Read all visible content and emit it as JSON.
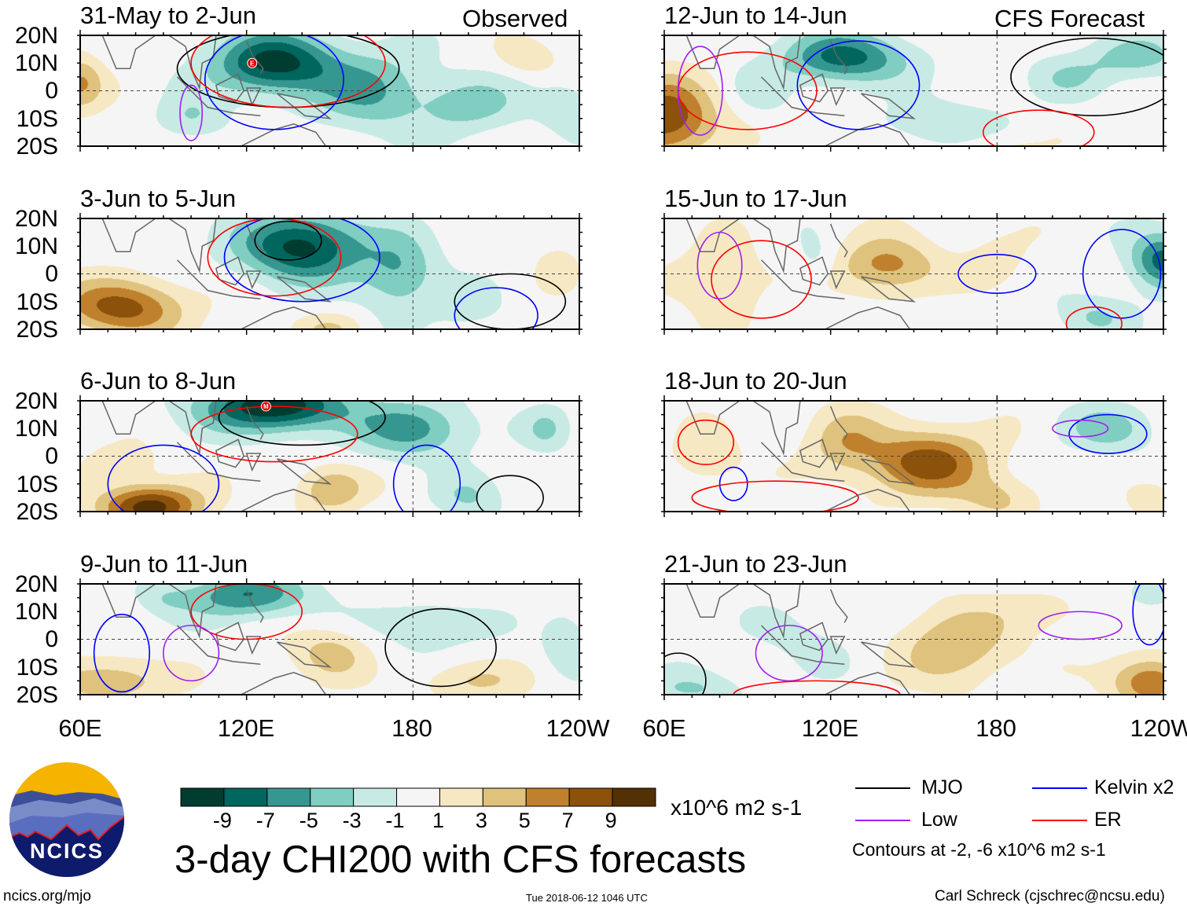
{
  "header": {
    "left_label": "Observed",
    "right_label": "CFS Forecast"
  },
  "lat_labels": [
    "20N",
    "10N",
    "0",
    "10S",
    "20S"
  ],
  "lon_labels": [
    "60E",
    "120E",
    "180",
    "120W"
  ],
  "colorbar": {
    "ticks": [
      "-9",
      "-7",
      "-5",
      "-3",
      "-1",
      "1",
      "3",
      "5",
      "7",
      "9"
    ],
    "colors": [
      "#003c30",
      "#01665e",
      "#35978f",
      "#80cdc1",
      "#c7eae5",
      "#f5f5f5",
      "#f6e8c3",
      "#dfc27d",
      "#bf812d",
      "#8c510a",
      "#543005"
    ],
    "units": "x10^6 m2 s-1"
  },
  "title": "3-day CHI200 with CFS forecasts",
  "legend": {
    "items": [
      {
        "label": "MJO",
        "color": "#000000"
      },
      {
        "label": "Kelvin x2",
        "color": "#0000ff"
      },
      {
        "label": "Low",
        "color": "#a020f0"
      },
      {
        "label": "ER",
        "color": "#ff0000"
      }
    ],
    "note": "Contours at -2, -6 x10^6 m2 s-1"
  },
  "footer": {
    "url": "ncics.org/mjo",
    "timestamp": "Tue 2018-06-12 1046 UTC",
    "credit": "Carl Schreck (cjschrec@ncsu.edu)",
    "logo_text": "NCICS"
  },
  "chart_data": {
    "type": "heatmap",
    "variable": "CHI200 anomaly",
    "xlim": [
      60,
      240
    ],
    "ylim": [
      -20,
      20
    ],
    "levels": [
      -9,
      -7,
      -5,
      -3,
      -1,
      1,
      3,
      5,
      7,
      9
    ],
    "panels": [
      {
        "title": "31-May to 2-Jun",
        "group": "Observed",
        "centers": [
          [
            130,
            10,
            -10,
            22,
            11
          ],
          [
            165,
            0,
            -5,
            20,
            14
          ],
          [
            60,
            3,
            5,
            8,
            10
          ],
          [
            200,
            -5,
            -4,
            18,
            10
          ],
          [
            222,
            12,
            2.5,
            10,
            6
          ],
          [
            100,
            -10,
            -3,
            12,
            8
          ],
          [
            235,
            -5,
            -3,
            10,
            8
          ]
        ],
        "contours": [
          [
            "MJO",
            135,
            8,
            40,
            14
          ],
          [
            "Kelvin",
            130,
            4,
            25,
            18
          ],
          [
            "ER",
            135,
            10,
            35,
            16
          ],
          [
            "Low",
            100,
            -8,
            4,
            10
          ]
        ],
        "storm": [
          122,
          10,
          "E"
        ]
      },
      {
        "title": "3-Jun to 5-Jun",
        "group": "Observed",
        "centers": [
          [
            140,
            10,
            -10,
            22,
            12
          ],
          [
            175,
            0,
            -5,
            14,
            14
          ],
          [
            75,
            -12,
            8,
            22,
            10
          ],
          [
            150,
            -20,
            3,
            12,
            6
          ],
          [
            232,
            4,
            2,
            8,
            8
          ],
          [
            200,
            -12,
            -2,
            12,
            8
          ]
        ],
        "contours": [
          [
            "MJO",
            135,
            12,
            12,
            7
          ],
          [
            "Kelvin",
            140,
            6,
            28,
            16
          ],
          [
            "ER",
            130,
            6,
            24,
            14
          ],
          [
            "MJO",
            215,
            -10,
            20,
            10
          ],
          [
            "Kelvin",
            210,
            -15,
            15,
            10
          ]
        ]
      },
      {
        "title": "6-Jun to 8-Jun",
        "group": "Observed",
        "centers": [
          [
            130,
            18,
            -11,
            26,
            9
          ],
          [
            180,
            10,
            -6,
            20,
            10
          ],
          [
            85,
            -18,
            10,
            18,
            8
          ],
          [
            150,
            -12,
            5,
            12,
            8
          ],
          [
            228,
            10,
            -3,
            8,
            8
          ],
          [
            75,
            -2,
            3,
            12,
            6
          ],
          [
            200,
            -15,
            -3,
            12,
            8
          ]
        ],
        "contours": [
          [
            "MJO",
            140,
            14,
            30,
            10
          ],
          [
            "ER",
            130,
            8,
            30,
            10
          ],
          [
            "Kelvin",
            90,
            -10,
            20,
            14
          ],
          [
            "Kelvin",
            185,
            -10,
            12,
            14
          ],
          [
            "MJO",
            215,
            -15,
            12,
            8
          ]
        ],
        "storm": [
          127,
          18,
          "M"
        ]
      },
      {
        "title": "9-Jun to 11-Jun",
        "group": "Observed",
        "centers": [
          [
            120,
            16,
            -7,
            22,
            8
          ],
          [
            70,
            -15,
            5,
            20,
            8
          ],
          [
            150,
            -5,
            4,
            14,
            9
          ],
          [
            185,
            5,
            -2.5,
            20,
            10
          ],
          [
            200,
            -15,
            3,
            20,
            7
          ],
          [
            90,
            15,
            -2,
            10,
            6
          ],
          [
            235,
            0,
            -3,
            8,
            10
          ]
        ],
        "contours": [
          [
            "MJO",
            190,
            -3,
            20,
            14
          ],
          [
            "ER",
            120,
            10,
            20,
            10
          ],
          [
            "Kelvin",
            75,
            -5,
            10,
            14
          ],
          [
            "Low",
            100,
            -5,
            10,
            10
          ]
        ]
      },
      {
        "title": "12-Jun to 14-Jun",
        "group": "CFS Forecast",
        "centers": [
          [
            60,
            -10,
            9,
            18,
            14
          ],
          [
            125,
            12,
            -8,
            22,
            9
          ],
          [
            160,
            -12,
            -3,
            22,
            8
          ],
          [
            230,
            12,
            -4,
            18,
            8
          ],
          [
            205,
            5,
            -2.5,
            14,
            8
          ],
          [
            95,
            0,
            -2,
            10,
            8
          ],
          [
            180,
            -20,
            2,
            15,
            6
          ]
        ],
        "contours": [
          [
            "MJO",
            215,
            5,
            30,
            14
          ],
          [
            "Kelvin",
            130,
            2,
            22,
            16
          ],
          [
            "ER",
            90,
            0,
            25,
            14
          ],
          [
            "Low",
            73,
            0,
            8,
            16
          ],
          [
            "ER",
            195,
            -15,
            20,
            8
          ]
        ]
      },
      {
        "title": "15-Jun to 17-Jun",
        "group": "CFS Forecast",
        "centers": [
          [
            140,
            3,
            6,
            18,
            10
          ],
          [
            80,
            -2,
            3,
            16,
            14
          ],
          [
            240,
            5,
            -8,
            12,
            10
          ],
          [
            215,
            -15,
            -3,
            14,
            8
          ],
          [
            115,
            5,
            -2,
            8,
            8
          ],
          [
            180,
            5,
            2,
            12,
            10
          ]
        ],
        "contours": [
          [
            "Kelvin",
            180,
            0,
            14,
            7
          ],
          [
            "ER",
            95,
            -2,
            18,
            14
          ],
          [
            "Low",
            80,
            3,
            8,
            12
          ],
          [
            "Kelvin",
            225,
            0,
            14,
            16
          ],
          [
            "ER",
            215,
            -18,
            10,
            6
          ]
        ]
      },
      {
        "title": "18-Jun to 20-Jun",
        "group": "CFS Forecast",
        "centers": [
          [
            155,
            -2,
            8,
            22,
            12
          ],
          [
            125,
            5,
            4,
            14,
            12
          ],
          [
            220,
            10,
            -4,
            16,
            8
          ],
          [
            75,
            0,
            3,
            12,
            10
          ],
          [
            180,
            -15,
            3,
            14,
            8
          ],
          [
            235,
            -15,
            3,
            8,
            6
          ]
        ],
        "contours": [
          [
            "Kelvin",
            220,
            8,
            14,
            7
          ],
          [
            "Low",
            210,
            10,
            10,
            3
          ],
          [
            "ER",
            75,
            5,
            10,
            8
          ],
          [
            "Kelvin",
            85,
            -10,
            5,
            6
          ],
          [
            "ER",
            100,
            -15,
            30,
            6
          ]
        ]
      },
      {
        "title": "21-Jun to 23-Jun",
        "group": "CFS Forecast",
        "centers": [
          [
            165,
            -2,
            5,
            20,
            14
          ],
          [
            235,
            -15,
            7,
            14,
            9
          ],
          [
            70,
            -18,
            -3,
            18,
            6
          ],
          [
            235,
            15,
            -2,
            10,
            6
          ],
          [
            110,
            0,
            -1.5,
            20,
            12
          ],
          [
            200,
            10,
            2,
            18,
            8
          ]
        ],
        "contours": [
          [
            "Low",
            210,
            5,
            15,
            5
          ],
          [
            "Low",
            105,
            -5,
            12,
            10
          ],
          [
            "ER",
            115,
            -20,
            30,
            5
          ],
          [
            "MJO",
            65,
            -15,
            10,
            10
          ],
          [
            "Kelvin",
            235,
            10,
            6,
            12
          ]
        ]
      }
    ]
  }
}
